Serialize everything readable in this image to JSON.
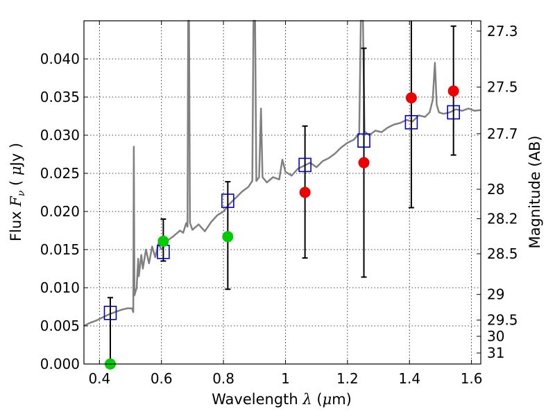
{
  "chart_data": {
    "type": "scatter",
    "xlabel": {
      "prefix": "Wavelength  ",
      "symbol": "λ",
      "suffix": " (",
      "unit_symbol": "μ",
      "unit": "m)"
    },
    "ylabel": {
      "prefix": "Flux  ",
      "symbol": "F",
      "subscript": "ν",
      "suffix": "  ( ",
      "unit_symbol": "μ",
      "unit": "Jy )"
    },
    "y2label": "Magnitude (AB)",
    "xlim": [
      0.35,
      1.63
    ],
    "ylim": [
      0.0,
      0.045
    ],
    "grid": true,
    "x_ticks": [
      {
        "value": 0.4,
        "label": "0.4"
      },
      {
        "value": 0.6,
        "label": "0.6"
      },
      {
        "value": 0.8,
        "label": "0.8"
      },
      {
        "value": 1.0,
        "label": "1"
      },
      {
        "value": 1.2,
        "label": "1.2"
      },
      {
        "value": 1.4,
        "label": "1.4"
      },
      {
        "value": 1.6,
        "label": "1.6"
      }
    ],
    "y_ticks": [
      {
        "value": 0.0,
        "label": "0.000"
      },
      {
        "value": 0.005,
        "label": "0.005"
      },
      {
        "value": 0.01,
        "label": "0.010"
      },
      {
        "value": 0.015,
        "label": "0.015"
      },
      {
        "value": 0.02,
        "label": "0.020"
      },
      {
        "value": 0.025,
        "label": "0.025"
      },
      {
        "value": 0.03,
        "label": "0.030"
      },
      {
        "value": 0.035,
        "label": "0.035"
      },
      {
        "value": 0.04,
        "label": "0.040"
      }
    ],
    "mag_ticks": [
      {
        "value": 27.3,
        "label": "27.3"
      },
      {
        "value": 27.5,
        "label": "27.5"
      },
      {
        "value": 27.7,
        "label": "27.7"
      },
      {
        "value": 28.0,
        "label": "28"
      },
      {
        "value": 28.2,
        "label": "28.2"
      },
      {
        "value": 28.5,
        "label": "28.5"
      },
      {
        "value": 29.0,
        "label": "29"
      },
      {
        "value": 29.5,
        "label": "29.5"
      },
      {
        "value": 30.0,
        "label": "30"
      },
      {
        "value": 31.0,
        "label": "31"
      }
    ],
    "series": [
      {
        "kind": "model_spectrum",
        "color": "#808080",
        "points": [
          [
            0.35,
            0.005
          ],
          [
            0.37,
            0.0054
          ],
          [
            0.39,
            0.0057
          ],
          [
            0.41,
            0.0061
          ],
          [
            0.43,
            0.0065
          ],
          [
            0.45,
            0.0068
          ],
          [
            0.47,
            0.0071
          ],
          [
            0.49,
            0.0073
          ],
          [
            0.505,
            0.0073
          ],
          [
            0.509,
            0.0068
          ],
          [
            0.511,
            0.0285
          ],
          [
            0.513,
            0.009
          ],
          [
            0.52,
            0.01
          ],
          [
            0.525,
            0.0138
          ],
          [
            0.527,
            0.0115
          ],
          [
            0.535,
            0.0143
          ],
          [
            0.54,
            0.0125
          ],
          [
            0.55,
            0.015
          ],
          [
            0.56,
            0.0132
          ],
          [
            0.57,
            0.0154
          ],
          [
            0.58,
            0.014
          ],
          [
            0.59,
            0.0158
          ],
          [
            0.6,
            0.015
          ],
          [
            0.62,
            0.0162
          ],
          [
            0.64,
            0.0168
          ],
          [
            0.66,
            0.0175
          ],
          [
            0.67,
            0.0172
          ],
          [
            0.68,
            0.0185
          ],
          [
            0.684,
            0.018
          ],
          [
            0.686,
            0.045
          ],
          [
            0.689,
            0.045
          ],
          [
            0.692,
            0.0185
          ],
          [
            0.7,
            0.0176
          ],
          [
            0.72,
            0.0183
          ],
          [
            0.74,
            0.0174
          ],
          [
            0.76,
            0.0186
          ],
          [
            0.78,
            0.0195
          ],
          [
            0.8,
            0.02
          ],
          [
            0.82,
            0.021
          ],
          [
            0.84,
            0.0218
          ],
          [
            0.86,
            0.0226
          ],
          [
            0.88,
            0.0232
          ],
          [
            0.893,
            0.024
          ],
          [
            0.897,
            0.045
          ],
          [
            0.902,
            0.045
          ],
          [
            0.906,
            0.024
          ],
          [
            0.915,
            0.0245
          ],
          [
            0.921,
            0.0335
          ],
          [
            0.926,
            0.0245
          ],
          [
            0.94,
            0.0238
          ],
          [
            0.96,
            0.0245
          ],
          [
            0.98,
            0.0242
          ],
          [
            0.99,
            0.0268
          ],
          [
            1.0,
            0.0252
          ],
          [
            1.02,
            0.0247
          ],
          [
            1.04,
            0.0256
          ],
          [
            1.06,
            0.026
          ],
          [
            1.08,
            0.0264
          ],
          [
            1.1,
            0.0258
          ],
          [
            1.12,
            0.0266
          ],
          [
            1.14,
            0.027
          ],
          [
            1.16,
            0.0276
          ],
          [
            1.18,
            0.0284
          ],
          [
            1.2,
            0.029
          ],
          [
            1.22,
            0.0294
          ],
          [
            1.238,
            0.0302
          ],
          [
            1.243,
            0.045
          ],
          [
            1.25,
            0.045
          ],
          [
            1.255,
            0.0305
          ],
          [
            1.27,
            0.03
          ],
          [
            1.29,
            0.0306
          ],
          [
            1.31,
            0.0304
          ],
          [
            1.33,
            0.031
          ],
          [
            1.35,
            0.0314
          ],
          [
            1.37,
            0.0316
          ],
          [
            1.39,
            0.032
          ],
          [
            1.41,
            0.0318
          ],
          [
            1.43,
            0.0326
          ],
          [
            1.45,
            0.0324
          ],
          [
            1.465,
            0.033
          ],
          [
            1.475,
            0.0346
          ],
          [
            1.482,
            0.0395
          ],
          [
            1.488,
            0.034
          ],
          [
            1.495,
            0.033
          ],
          [
            1.51,
            0.0328
          ],
          [
            1.53,
            0.033
          ],
          [
            1.55,
            0.0334
          ],
          [
            1.57,
            0.0332
          ],
          [
            1.59,
            0.0335
          ],
          [
            1.61,
            0.0332
          ],
          [
            1.63,
            0.0333
          ]
        ]
      },
      {
        "kind": "model_band_flux",
        "marker": "open-square",
        "color": "#0000cc",
        "points": [
          [
            0.435,
            0.0067
          ],
          [
            0.606,
            0.0147
          ],
          [
            0.814,
            0.0214
          ],
          [
            1.063,
            0.0261
          ],
          [
            1.253,
            0.0293
          ],
          [
            1.406,
            0.0317
          ],
          [
            1.542,
            0.033
          ]
        ]
      },
      {
        "kind": "observed",
        "marker": "filled-circle",
        "color": "#00cc00",
        "points": [
          {
            "x": 0.435,
            "y": 0.0,
            "err_lo": 0.0,
            "err_hi": 0.0087
          },
          {
            "x": 0.606,
            "y": 0.0161,
            "err_lo": 0.0135,
            "err_hi": 0.019
          },
          {
            "x": 0.814,
            "y": 0.0167,
            "err_lo": 0.0098,
            "err_hi": 0.0239
          }
        ]
      },
      {
        "kind": "observed",
        "marker": "filled-circle",
        "color": "#ee0000",
        "points": [
          {
            "x": 1.063,
            "y": 0.0225,
            "err_lo": 0.0139,
            "err_hi": 0.0312
          },
          {
            "x": 1.253,
            "y": 0.0264,
            "err_lo": 0.0114,
            "err_hi": 0.0414
          },
          {
            "x": 1.406,
            "y": 0.0349,
            "err_lo": 0.0205,
            "err_hi": 0.045
          },
          {
            "x": 1.542,
            "y": 0.0358,
            "err_lo": 0.0274,
            "err_hi": 0.0443
          }
        ]
      }
    ]
  }
}
